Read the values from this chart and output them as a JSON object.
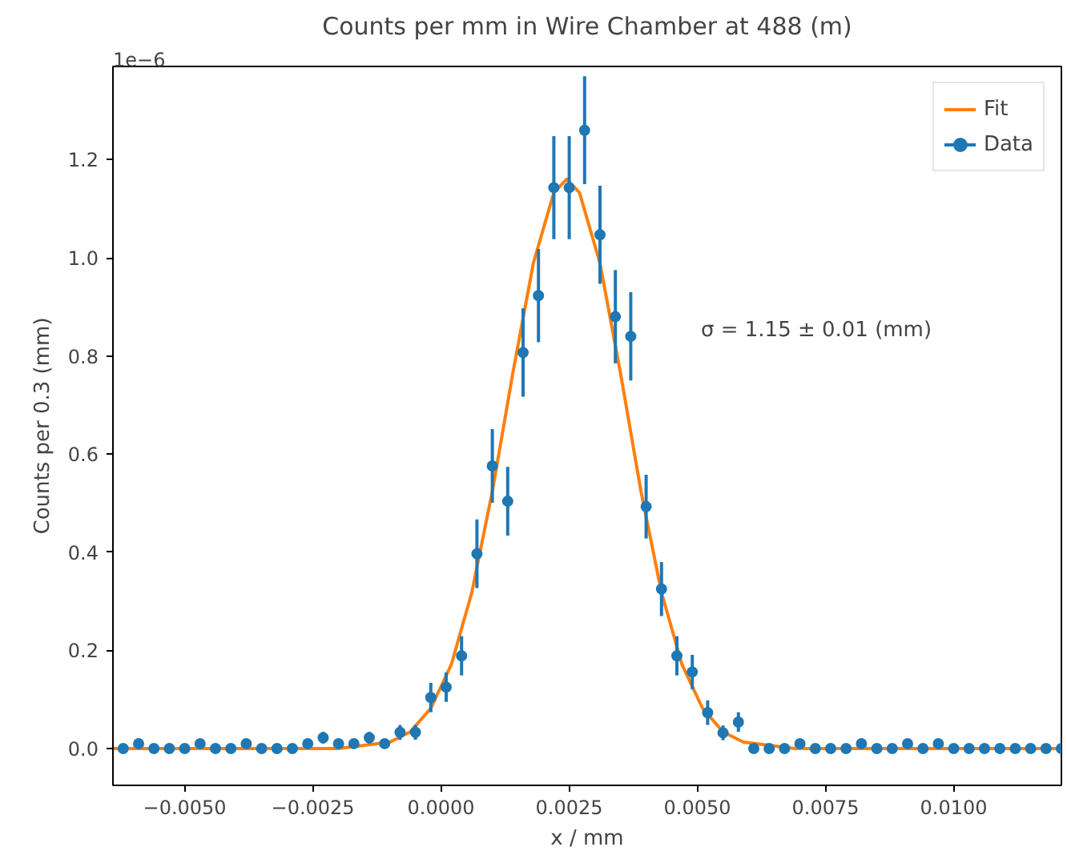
{
  "chart_data": {
    "type": "scatter",
    "title": "Counts per mm in Wire Chamber at 488 (m)",
    "xlabel": "x / mm",
    "ylabel": "Counts per 0.3 (mm)",
    "annotations": [
      "1e−6",
      "σ = 1.15 ± 0.01 (mm)"
    ],
    "xlim": [
      -0.0064,
      0.0121
    ],
    "ylim": [
      -0.075,
      1.39
    ],
    "xticks": [
      {
        "value": -0.005,
        "label": "−0.0050"
      },
      {
        "value": -0.0025,
        "label": "−0.0025"
      },
      {
        "value": 0,
        "label": "0.0000"
      },
      {
        "value": 0.0025,
        "label": "0.0025"
      },
      {
        "value": 0.005,
        "label": "0.0050"
      },
      {
        "value": 0.0075,
        "label": "0.0075"
      },
      {
        "value": 0.01,
        "label": "0.0100"
      }
    ],
    "yticks": [
      {
        "value": 0,
        "label": "0.0"
      },
      {
        "value": 0.2,
        "label": "0.2"
      },
      {
        "value": 0.4,
        "label": "0.4"
      },
      {
        "value": 0.6,
        "label": "0.6"
      },
      {
        "value": 0.8,
        "label": "0.8"
      },
      {
        "value": 1.0,
        "label": "1.0"
      },
      {
        "value": 1.2,
        "label": "1.2"
      }
    ],
    "grid": false,
    "legend": "top right",
    "series": [
      {
        "name": "Fit",
        "type": "line",
        "color": "#ff7f0e",
        "line_style": "solid",
        "marker": "none",
        "x": [
          -0.0064,
          -0.002,
          -0.001,
          -0.0006,
          -0.0002,
          0.0002,
          0.0006,
          0.001,
          0.0014,
          0.0018,
          0.0022,
          0.00245,
          0.0027,
          0.0031,
          0.0035,
          0.0039,
          0.0043,
          0.0047,
          0.0051,
          0.0055,
          0.0059,
          0.0069,
          0.0121
        ],
        "values": [
          0,
          0,
          0.013,
          0.034,
          0.082,
          0.171,
          0.318,
          0.524,
          0.765,
          0.989,
          1.133,
          1.16,
          1.133,
          0.989,
          0.765,
          0.524,
          0.318,
          0.171,
          0.082,
          0.034,
          0.013,
          0,
          0
        ]
      },
      {
        "name": "Data",
        "marker": "circle",
        "color": "#1f77b4",
        "x": [
          -0.0062,
          -0.0059,
          -0.0056,
          -0.0053,
          -0.005,
          -0.0047,
          -0.0044,
          -0.0041,
          -0.0038,
          -0.0035,
          -0.0032,
          -0.0029,
          -0.0026,
          -0.0023,
          -0.002,
          -0.0017,
          -0.0014,
          -0.0011,
          -0.0008,
          -0.0005,
          -0.0002,
          0.0001,
          0.0004,
          0.0007,
          0.001,
          0.0013,
          0.0016,
          0.0019,
          0.0022,
          0.0025,
          0.0028,
          0.0031,
          0.0034,
          0.0037,
          0.004,
          0.0043,
          0.0046,
          0.0049,
          0.0052,
          0.0055,
          0.0058,
          0.0061,
          0.0064,
          0.0067,
          0.007,
          0.0073,
          0.0076,
          0.0079,
          0.0082,
          0.0085,
          0.0088,
          0.0091,
          0.0094,
          0.0097,
          0.01,
          0.0103,
          0.0106,
          0.0109,
          0.0112,
          0.0115,
          0.0118,
          0.0121
        ],
        "values": [
          0,
          0.01,
          0,
          0,
          0,
          0.01,
          0,
          0,
          0.01,
          0,
          0,
          0,
          0.01,
          0.022,
          0.01,
          0.01,
          0.022,
          0.01,
          0.033,
          0.033,
          0.104,
          0.125,
          0.189,
          0.397,
          0.576,
          0.504,
          0.807,
          0.923,
          1.143,
          1.143,
          1.26,
          1.047,
          0.88,
          0.84,
          0.493,
          0.325,
          0.189,
          0.156,
          0.073,
          0.032,
          0.054,
          0,
          0,
          0,
          0.01,
          0,
          0,
          0,
          0.01,
          0,
          0,
          0.01,
          0,
          0.01,
          0,
          0,
          0,
          0,
          0,
          0,
          0,
          0
        ],
        "errors": [
          null,
          0.01,
          null,
          null,
          null,
          0.01,
          null,
          null,
          0.01,
          null,
          null,
          null,
          0.01,
          0.012,
          0.01,
          0.01,
          0.012,
          0.01,
          0.015,
          0.015,
          0.03,
          0.03,
          0.04,
          0.07,
          0.075,
          0.07,
          0.09,
          0.095,
          0.105,
          0.105,
          0.11,
          0.1,
          0.095,
          0.09,
          0.065,
          0.055,
          0.04,
          0.035,
          0.025,
          0.015,
          0.02,
          null,
          null,
          null,
          0.01,
          null,
          null,
          null,
          0.01,
          null,
          null,
          0.01,
          null,
          0.01,
          null,
          null,
          null,
          null,
          null,
          null,
          null,
          null
        ]
      }
    ]
  }
}
